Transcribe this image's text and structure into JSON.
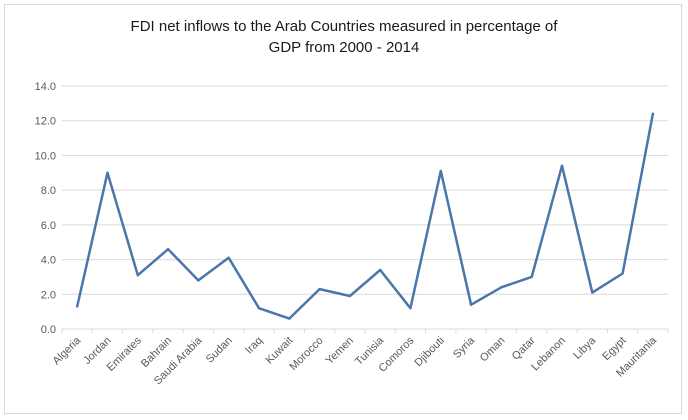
{
  "chart_data": {
    "type": "line",
    "title_line1": "FDI net inflows to the Arab Countries measured in percentage of",
    "title_line2": "GDP from 2000 - 2014",
    "xlabel": "",
    "ylabel": "",
    "categories": [
      "Algeria",
      "Jordan",
      "Emirates",
      "Bahrain",
      "Saudi Arabia",
      "Sudan",
      "Iraq",
      "Kuwait",
      "Morocco",
      "Yemen",
      "Tunisia",
      "Comoros",
      "Djibouti",
      "Syria",
      "Oman",
      "Qatar",
      "Lebanon",
      "Libya",
      "Egypt",
      "Mauritania"
    ],
    "series": [
      {
        "values": [
          1.3,
          9.0,
          3.1,
          4.6,
          2.8,
          4.1,
          1.2,
          0.6,
          2.3,
          1.9,
          3.4,
          1.2,
          9.1,
          1.4,
          2.4,
          3.0,
          9.4,
          2.1,
          3.2,
          12.4
        ]
      }
    ],
    "ylim": [
      0,
      14
    ],
    "yticks": [
      "0.0",
      "2.0",
      "4.0",
      "6.0",
      "8.0",
      "10.0",
      "12.0",
      "14.0"
    ],
    "grid": true,
    "line_color": "#4a76ac"
  }
}
